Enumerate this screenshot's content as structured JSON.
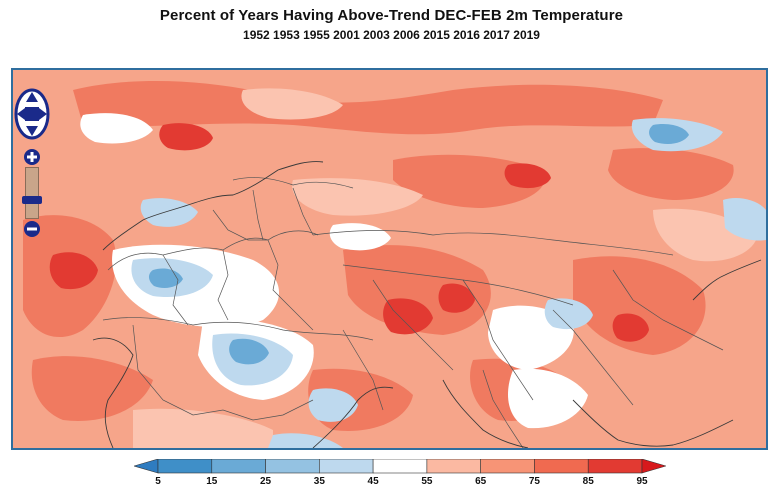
{
  "title": "Percent of Years Having Above-Trend DEC-FEB 2m Temperature",
  "subtitle": "1952 1953 1955 2001 2003 2006 2015 2016 2017 2019",
  "colorbar": {
    "labels": [
      "5",
      "15",
      "25",
      "35",
      "45",
      "55",
      "65",
      "75",
      "85",
      "95"
    ],
    "colors": [
      "#3f8fc8",
      "#6aaad6",
      "#94c2e2",
      "#bed9ee",
      "#ffffff",
      "#fbb9a2",
      "#f79476",
      "#f06a50",
      "#e23a32"
    ],
    "low_arrow_color": "#2f7cc0",
    "high_arrow_color": "#d7191c"
  },
  "map": {
    "region": "Europe, Africa and Asia",
    "base_color": "#f6a58a",
    "border_color": "#555555",
    "frame_color": "#2f6e9e"
  },
  "controls": {
    "pan_icon": "pan-arrows-icon",
    "zoom_in_icon": "plus-icon",
    "zoom_out_icon": "minus-icon",
    "control_color": "#1a2a8a"
  }
}
